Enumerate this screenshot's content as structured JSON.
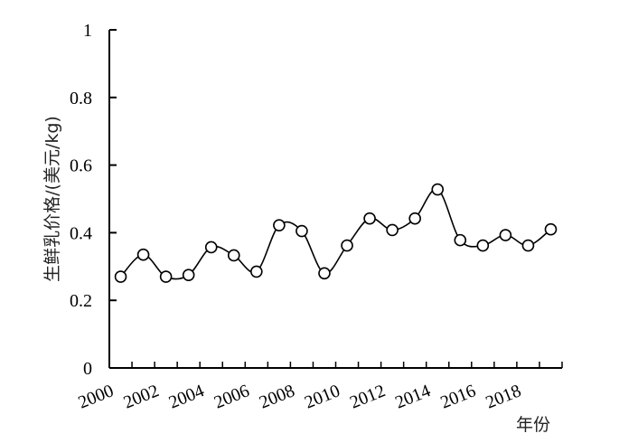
{
  "chart_data": {
    "type": "line",
    "title": "",
    "xlabel": "年份",
    "ylabel": "生鲜乳价格/(美元/kg)",
    "xlim": [
      2000,
      2020
    ],
    "ylim": [
      0,
      1
    ],
    "yticks": [
      0,
      0.2,
      0.4,
      0.6,
      0.8,
      1
    ],
    "ytick_labels": [
      "0",
      "0.2",
      "0.4",
      "0.6",
      "0.8",
      "1"
    ],
    "xtick_labels": [
      "2000",
      "2002",
      "2004",
      "2006",
      "2008",
      "2010",
      "2012",
      "2014",
      "2016",
      "2018"
    ],
    "xtick_values": [
      2000,
      2002,
      2004,
      2006,
      2008,
      2010,
      2012,
      2014,
      2016,
      2018
    ],
    "grid": false,
    "legend": "none",
    "series": [
      {
        "x": [
          2000,
          2001,
          2002,
          2003,
          2004,
          2005,
          2006,
          2007,
          2008,
          2009,
          2010,
          2011,
          2012,
          2013,
          2014,
          2015,
          2016,
          2017,
          2018,
          2019
        ],
        "values": [
          0.27,
          0.335,
          0.27,
          0.275,
          0.357,
          0.333,
          0.285,
          0.422,
          0.405,
          0.28,
          0.362,
          0.442,
          0.408,
          0.442,
          0.528,
          0.378,
          0.362,
          0.393,
          0.362,
          0.41
        ],
        "marker": "open-circle",
        "color": "#000000"
      }
    ]
  }
}
